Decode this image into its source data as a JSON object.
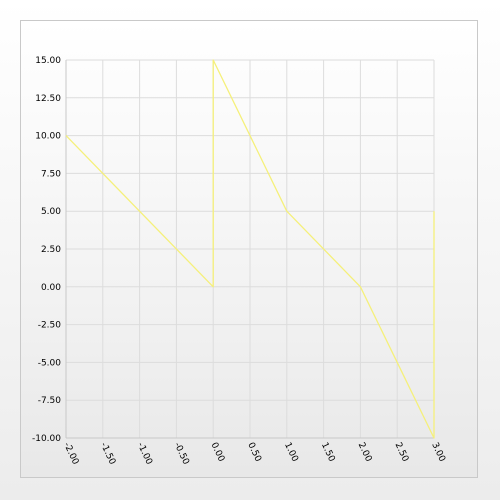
{
  "chart_data": {
    "type": "line",
    "xlim": [
      -2,
      3
    ],
    "ylim": [
      -10,
      15
    ],
    "x_ticks": [
      "-2.00",
      "-1.50",
      "-1.00",
      "-0.50",
      "0.00",
      "0.50",
      "1.00",
      "1.50",
      "2.00",
      "2.50",
      "3.00"
    ],
    "y_ticks": [
      "15.00",
      "12.50",
      "10.00",
      "7.50",
      "5.00",
      "2.50",
      "0.00",
      "-2.50",
      "-5.00",
      "-7.50",
      "-10.00"
    ],
    "grid": true,
    "series": [
      {
        "color": "#f5f07a",
        "x": [
          -2,
          0,
          0,
          1,
          2,
          3,
          3
        ],
        "y": [
          10,
          0,
          15,
          5,
          0,
          -10,
          5
        ]
      }
    ]
  }
}
